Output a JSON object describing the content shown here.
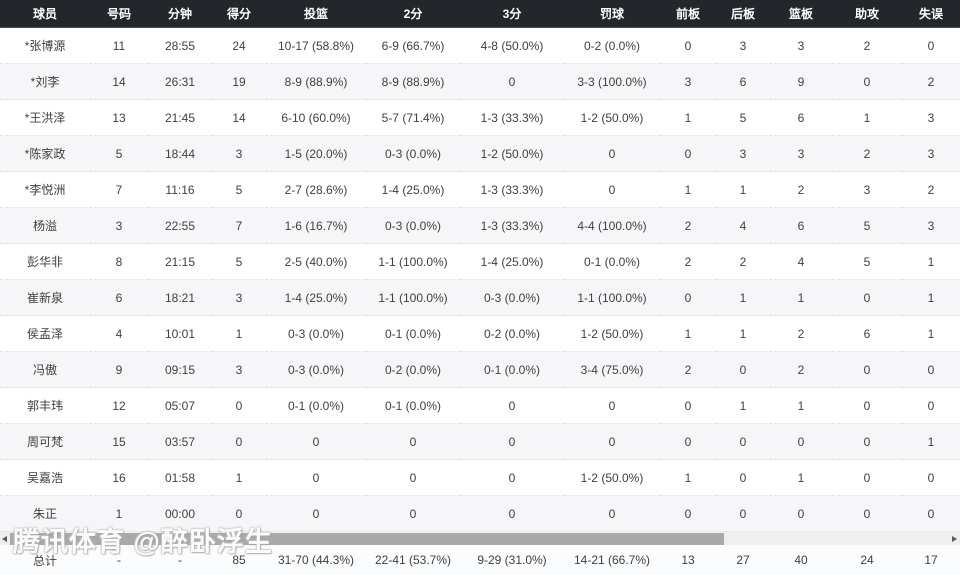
{
  "watermark": "腾讯体育 @醉卧浮生",
  "colors": {
    "header_bg": "#23262b",
    "header_text": "#ffffff",
    "row_alt_bg": "#f6f6f8",
    "cell_text": "#3f3f3f",
    "scrollbar_thumb": "#a9a9a9",
    "scrollbar_track": "#efefee"
  },
  "table": {
    "columns": [
      "球员",
      "号码",
      "分钟",
      "得分",
      "投篮",
      "2分",
      "3分",
      "罚球",
      "前板",
      "后板",
      "篮板",
      "助攻",
      "失误"
    ],
    "rows": [
      [
        "*张博源",
        "11",
        "28:55",
        "24",
        "10-17 (58.8%)",
        "6-9 (66.7%)",
        "4-8 (50.0%)",
        "0-2 (0.0%)",
        "0",
        "3",
        "3",
        "2",
        "0"
      ],
      [
        "*刘李",
        "14",
        "26:31",
        "19",
        "8-9 (88.9%)",
        "8-9 (88.9%)",
        "0",
        "3-3 (100.0%)",
        "3",
        "6",
        "9",
        "0",
        "2"
      ],
      [
        "*王洪泽",
        "13",
        "21:45",
        "14",
        "6-10 (60.0%)",
        "5-7 (71.4%)",
        "1-3 (33.3%)",
        "1-2 (50.0%)",
        "1",
        "5",
        "6",
        "1",
        "3"
      ],
      [
        "*陈家政",
        "5",
        "18:44",
        "3",
        "1-5 (20.0%)",
        "0-3 (0.0%)",
        "1-2 (50.0%)",
        "0",
        "0",
        "3",
        "3",
        "2",
        "3"
      ],
      [
        "*李悦洲",
        "7",
        "11:16",
        "5",
        "2-7 (28.6%)",
        "1-4 (25.0%)",
        "1-3 (33.3%)",
        "0",
        "1",
        "1",
        "2",
        "3",
        "2"
      ],
      [
        "杨溢",
        "3",
        "22:55",
        "7",
        "1-6 (16.7%)",
        "0-3 (0.0%)",
        "1-3 (33.3%)",
        "4-4 (100.0%)",
        "2",
        "4",
        "6",
        "5",
        "3"
      ],
      [
        "彭华非",
        "8",
        "21:15",
        "5",
        "2-5 (40.0%)",
        "1-1 (100.0%)",
        "1-4 (25.0%)",
        "0-1 (0.0%)",
        "2",
        "2",
        "4",
        "5",
        "1"
      ],
      [
        "崔新泉",
        "6",
        "18:21",
        "3",
        "1-4 (25.0%)",
        "1-1 (100.0%)",
        "0-3 (0.0%)",
        "1-1 (100.0%)",
        "0",
        "1",
        "1",
        "0",
        "1"
      ],
      [
        "侯孟泽",
        "4",
        "10:01",
        "1",
        "0-3 (0.0%)",
        "0-1 (0.0%)",
        "0-2 (0.0%)",
        "1-2 (50.0%)",
        "1",
        "1",
        "2",
        "6",
        "1"
      ],
      [
        "冯傲",
        "9",
        "09:15",
        "3",
        "0-3 (0.0%)",
        "0-2 (0.0%)",
        "0-1 (0.0%)",
        "3-4 (75.0%)",
        "2",
        "0",
        "2",
        "0",
        "0"
      ],
      [
        "郭丰玮",
        "12",
        "05:07",
        "0",
        "0-1 (0.0%)",
        "0-1 (0.0%)",
        "0",
        "0",
        "0",
        "1",
        "1",
        "0",
        "0"
      ],
      [
        "周可梵",
        "15",
        "03:57",
        "0",
        "0",
        "0",
        "0",
        "0",
        "0",
        "0",
        "0",
        "0",
        "1"
      ],
      [
        "吴嘉浩",
        "16",
        "01:58",
        "1",
        "0",
        "0",
        "0",
        "1-2 (50.0%)",
        "1",
        "0",
        "1",
        "0",
        "0"
      ],
      [
        "朱正",
        "1",
        "00:00",
        "0",
        "0",
        "0",
        "0",
        "0",
        "0",
        "0",
        "0",
        "0",
        "0"
      ]
    ],
    "total_row": [
      "总计",
      "-",
      "-",
      "85",
      "31-70 (44.3%)",
      "22-41 (53.7%)",
      "9-29 (31.0%)",
      "14-21 (66.7%)",
      "13",
      "27",
      "40",
      "24",
      "17"
    ]
  }
}
